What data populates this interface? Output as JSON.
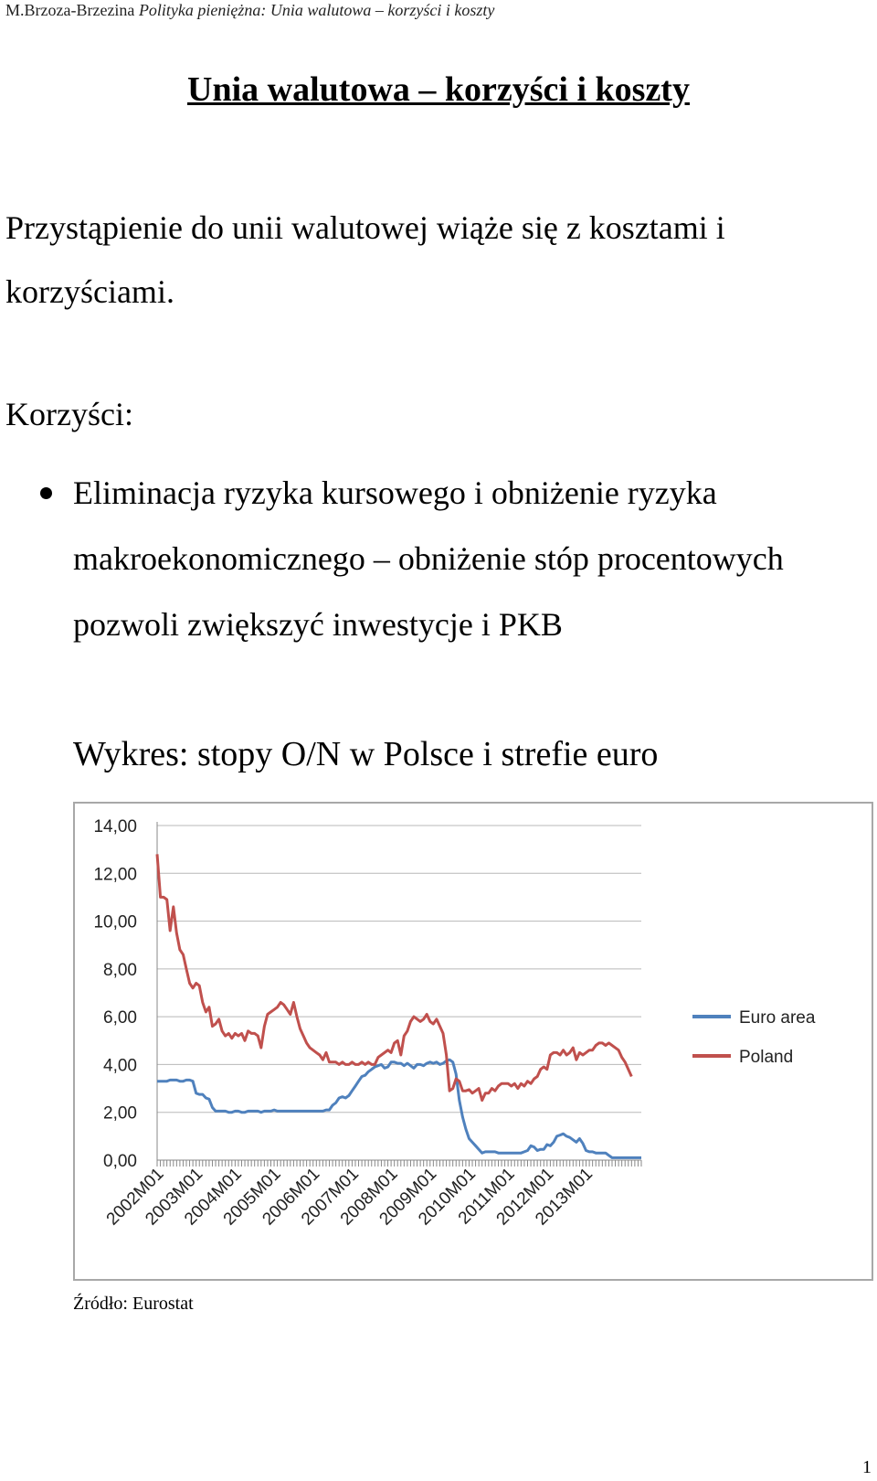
{
  "header": {
    "author": "M.Brzoza-Brzezina",
    "work": "Polityka pieniężna: Unia walutowa – korzyści i koszty"
  },
  "title": "Unia walutowa – korzyści i koszty",
  "intro": "Przystąpienie do unii walutowej wiąże się z kosztami i korzyściami.",
  "benefits_heading": "Korzyści:",
  "bullets": [
    "Eliminacja ryzyka kursowego i obniżenie ryzyka makroekonomicznego – obniżenie stóp procentowych pozwoli zwiększyć inwestycje i PKB"
  ],
  "chart_heading": "Wykres: stopy O/N w Polsce i strefie euro",
  "source": "Źródło: Eurostat",
  "page_number": "1",
  "chart_data": {
    "type": "line",
    "title": "",
    "xlabel": "",
    "ylabel": "",
    "ylim": [
      0,
      14
    ],
    "yticks": [
      "0,00",
      "2,00",
      "4,00",
      "6,00",
      "8,00",
      "10,00",
      "12,00",
      "14,00"
    ],
    "x_start": "2002M01",
    "x_tick_labels": [
      "2002M01",
      "2003M01",
      "2004M01",
      "2005M01",
      "2006M01",
      "2007M01",
      "2008M01",
      "2009M01",
      "2010M01",
      "2011M01",
      "2012M01",
      "2013M01"
    ],
    "legend_position": "right",
    "grid": "horizontal",
    "series": [
      {
        "name": "Euro area",
        "color": "#4f81bd",
        "values": [
          3.3,
          3.3,
          3.3,
          3.3,
          3.35,
          3.35,
          3.35,
          3.3,
          3.3,
          3.35,
          3.35,
          3.3,
          2.8,
          2.75,
          2.75,
          2.6,
          2.55,
          2.2,
          2.05,
          2.05,
          2.05,
          2.05,
          2.0,
          2.0,
          2.05,
          2.05,
          2.0,
          2.0,
          2.05,
          2.05,
          2.05,
          2.05,
          2.0,
          2.05,
          2.05,
          2.05,
          2.1,
          2.05,
          2.05,
          2.05,
          2.05,
          2.05,
          2.05,
          2.05,
          2.05,
          2.05,
          2.05,
          2.05,
          2.05,
          2.05,
          2.05,
          2.05,
          2.1,
          2.1,
          2.3,
          2.4,
          2.6,
          2.65,
          2.6,
          2.7,
          2.9,
          3.1,
          3.3,
          3.5,
          3.55,
          3.7,
          3.8,
          3.9,
          3.95,
          4.0,
          3.85,
          3.9,
          4.1,
          4.1,
          4.05,
          4.05,
          3.95,
          4.05,
          3.95,
          3.85,
          4.0,
          4.0,
          3.95,
          4.05,
          4.1,
          4.05,
          4.1,
          4.0,
          4.05,
          4.15,
          4.2,
          4.1,
          3.6,
          2.5,
          1.8,
          1.3,
          0.9,
          0.75,
          0.6,
          0.45,
          0.3,
          0.35,
          0.35,
          0.35,
          0.35,
          0.3,
          0.3,
          0.3,
          0.3,
          0.3,
          0.3,
          0.3,
          0.3,
          0.35,
          0.4,
          0.6,
          0.55,
          0.4,
          0.45,
          0.45,
          0.65,
          0.6,
          0.75,
          1.0,
          1.05,
          1.1,
          1.0,
          0.95,
          0.85,
          0.75,
          0.9,
          0.7,
          0.4,
          0.35,
          0.35,
          0.3,
          0.3,
          0.3,
          0.3,
          0.2,
          0.1,
          0.1,
          0.1,
          0.1,
          0.1,
          0.1,
          0.1,
          0.1,
          0.1,
          0.1
        ]
      },
      {
        "name": "Poland",
        "color": "#c0504d",
        "values": [
          12.8,
          11.0,
          11.0,
          10.9,
          9.6,
          10.6,
          9.5,
          8.8,
          8.6,
          8.0,
          7.4,
          7.2,
          7.4,
          7.3,
          6.6,
          6.2,
          6.4,
          5.6,
          5.7,
          5.9,
          5.4,
          5.2,
          5.3,
          5.1,
          5.3,
          5.2,
          5.3,
          5.0,
          5.4,
          5.3,
          5.3,
          5.2,
          4.7,
          5.6,
          6.1,
          6.2,
          6.3,
          6.4,
          6.6,
          6.5,
          6.3,
          6.1,
          6.6,
          6.0,
          5.5,
          5.2,
          4.9,
          4.7,
          4.6,
          4.5,
          4.4,
          4.2,
          4.5,
          4.1,
          4.1,
          4.1,
          4.0,
          4.1,
          4.0,
          4.0,
          4.1,
          4.0,
          4.0,
          4.1,
          4.0,
          4.1,
          4.0,
          4.0,
          4.3,
          4.4,
          4.5,
          4.6,
          4.5,
          4.9,
          5.0,
          4.4,
          5.2,
          5.4,
          5.8,
          6.0,
          5.9,
          5.8,
          5.9,
          6.1,
          5.8,
          5.7,
          5.9,
          5.6,
          5.3,
          4.4,
          2.9,
          3.0,
          3.4,
          3.3,
          2.9,
          2.9,
          2.95,
          2.8,
          2.9,
          3.0,
          2.5,
          2.8,
          2.8,
          3.0,
          2.9,
          3.1,
          3.2,
          3.2,
          3.2,
          3.1,
          3.2,
          3.0,
          3.2,
          3.1,
          3.3,
          3.2,
          3.4,
          3.5,
          3.8,
          3.9,
          3.8,
          4.4,
          4.5,
          4.5,
          4.4,
          4.6,
          4.4,
          4.5,
          4.7,
          4.2,
          4.5,
          4.4,
          4.5,
          4.6,
          4.6,
          4.8,
          4.9,
          4.9,
          4.8,
          4.9,
          4.8,
          4.7,
          4.6,
          4.3,
          4.1,
          3.8,
          3.5
        ]
      }
    ]
  }
}
